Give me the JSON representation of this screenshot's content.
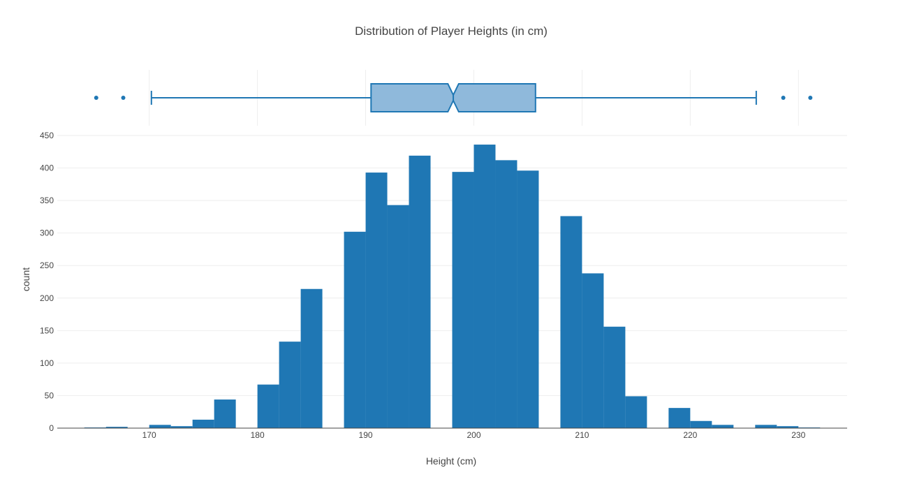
{
  "chart_data": {
    "type": "bar",
    "title": "Distribution of Player Heights (in cm)",
    "xlabel": "Height (cm)",
    "ylabel": "count",
    "bar_color": "#1f77b4",
    "box_fill": "#8fb9db",
    "grid": true,
    "xlim": [
      161.5,
      234.5
    ],
    "ylim": [
      0,
      450
    ],
    "x_ticks": [
      170,
      180,
      190,
      200,
      210,
      220,
      230
    ],
    "y_ticks": [
      0,
      50,
      100,
      150,
      200,
      250,
      300,
      350,
      400,
      450
    ],
    "histogram": {
      "bin_start": 164,
      "bin_width": 2,
      "counts": [
        1,
        2,
        0,
        5,
        3,
        13,
        44,
        0,
        67,
        133,
        214,
        0,
        302,
        393,
        343,
        419,
        0,
        394,
        436,
        412,
        396,
        0,
        326,
        238,
        156,
        49,
        0,
        31,
        11,
        5,
        0,
        5,
        3,
        1
      ]
    },
    "box": {
      "lower_fence": 170.2,
      "q1": 190.5,
      "median": 198.1,
      "notch_low": 197.6,
      "notch_high": 198.6,
      "q3": 205.7,
      "upper_fence": 226.1,
      "outliers": [
        165.1,
        167.6,
        228.6,
        231.1
      ]
    }
  }
}
